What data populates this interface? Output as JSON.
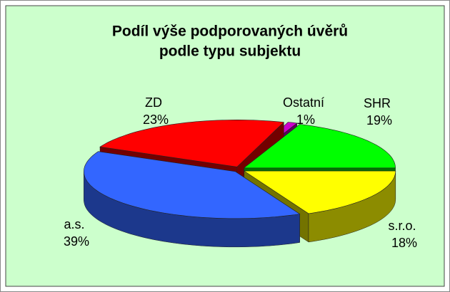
{
  "chart_data": {
    "type": "pie3d",
    "title": [
      "Podíl výše podporovaných úvěrů",
      "podle typu subjektu"
    ],
    "categories": [
      "SHR",
      "s.r.o.",
      "a.s.",
      "ZD",
      "Ostatní"
    ],
    "values": [
      19,
      18,
      39,
      23,
      1
    ],
    "value_labels": [
      "19%",
      "18%",
      "39%",
      "23%",
      "1%"
    ],
    "colors": [
      "#00ff00",
      "#ffff00",
      "#3366ff",
      "#ff0000",
      "#cc00cc"
    ]
  }
}
